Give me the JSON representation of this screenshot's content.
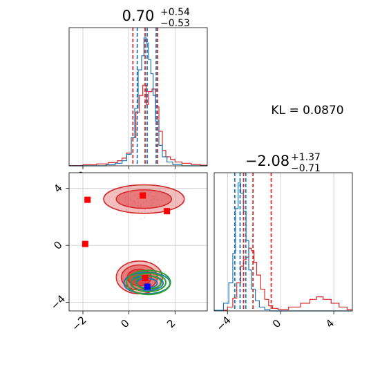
{
  "colors": {
    "red": "#d62728",
    "blue": "#1f77b4",
    "green": "#2ca02c",
    "red_marker": "#ff0000",
    "blue_marker": "#0000ff",
    "grid": "#c8c8c8"
  },
  "annotation": "KL = 0.0870",
  "chart_data": [
    {
      "type": "histogram",
      "panel": "top-left marginal (param 1)",
      "title": {
        "main": "0.70",
        "sup": "+0.54",
        "sub": "−0.53"
      },
      "xlim": [
        -2.6,
        3.4
      ],
      "x_ticks": [
        -2,
        0,
        2
      ],
      "grid": true,
      "series": [
        {
          "color": "red",
          "bins": [
            [
              -2.6,
              -2.0,
              0.2
            ],
            [
              -2.0,
              -1.4,
              0.8
            ],
            [
              -1.4,
              -0.9,
              1.5
            ],
            [
              -0.9,
              -0.5,
              2.5
            ],
            [
              -0.5,
              -0.3,
              4
            ],
            [
              -0.3,
              -0.1,
              6
            ],
            [
              -0.1,
              0.1,
              10
            ],
            [
              0.1,
              0.3,
              22
            ],
            [
              0.3,
              0.45,
              42
            ],
            [
              0.45,
              0.6,
              55
            ],
            [
              0.6,
              0.75,
              63
            ],
            [
              0.75,
              0.85,
              48
            ],
            [
              0.85,
              1.0,
              58
            ],
            [
              1.0,
              1.15,
              60
            ],
            [
              1.15,
              1.3,
              46
            ],
            [
              1.3,
              1.45,
              27
            ],
            [
              1.45,
              1.6,
              12
            ],
            [
              1.6,
              1.8,
              7
            ],
            [
              1.8,
              2.0,
              5
            ],
            [
              2.0,
              2.3,
              3
            ],
            [
              2.3,
              2.7,
              2
            ],
            [
              2.7,
              3.1,
              1
            ],
            [
              3.1,
              3.4,
              0.5
            ]
          ]
        },
        {
          "color": "blue",
          "bins": [
            [
              -2.6,
              -1.0,
              0
            ],
            [
              -1.0,
              -0.6,
              0.8
            ],
            [
              -0.6,
              -0.3,
              2
            ],
            [
              -0.3,
              -0.1,
              4
            ],
            [
              -0.1,
              0.1,
              9
            ],
            [
              0.1,
              0.25,
              22
            ],
            [
              0.25,
              0.4,
              45
            ],
            [
              0.4,
              0.55,
              75
            ],
            [
              0.55,
              0.65,
              86
            ],
            [
              0.65,
              0.75,
              100
            ],
            [
              0.75,
              0.85,
              96
            ],
            [
              0.85,
              0.95,
              83
            ],
            [
              0.95,
              1.05,
              72
            ],
            [
              1.05,
              1.15,
              55
            ],
            [
              1.15,
              1.3,
              35
            ],
            [
              1.3,
              1.45,
              16
            ],
            [
              1.45,
              1.65,
              7
            ],
            [
              1.65,
              1.9,
              3
            ],
            [
              1.9,
              2.3,
              1
            ],
            [
              2.3,
              3.4,
              0
            ]
          ]
        }
      ],
      "quantile_lines": [
        {
          "color": "red",
          "x": [
            0.17,
            0.7,
            1.24
          ]
        },
        {
          "color": "blue",
          "x": [
            0.36,
            0.79,
            1.18
          ]
        }
      ]
    },
    {
      "type": "scatter",
      "panel": "bottom-left 2D contours",
      "xlim": [
        -2.6,
        3.4
      ],
      "ylim": [
        -4.6,
        5.1
      ],
      "x_ticks": [
        -2,
        0,
        2
      ],
      "y_ticks": [
        4,
        0,
        -4
      ],
      "grid": true,
      "red_markers": [
        [
          -1.8,
          3.2
        ],
        [
          -1.9,
          0.1
        ],
        [
          0.6,
          3.5
        ],
        [
          1.65,
          2.4
        ],
        [
          0.7,
          -2.3
        ]
      ],
      "blue_markers": [
        [
          0.8,
          -2.9
        ]
      ],
      "contours": [
        {
          "color": "red",
          "kind": "filled",
          "cx": 0.45,
          "cy": -2.25,
          "levels": [
            [
              1.0,
              1.15
            ],
            [
              0.78,
              0.88
            ],
            [
              0.52,
              0.58
            ]
          ]
        },
        {
          "color": "red",
          "kind": "filled",
          "cx": 0.65,
          "cy": 3.25,
          "levels": [
            [
              1.75,
              1.0
            ],
            [
              1.2,
              0.65
            ]
          ]
        },
        {
          "color": "blue",
          "kind": "line",
          "cx": 0.78,
          "cy": -2.65,
          "levels": [
            [
              1.0,
              0.75
            ],
            [
              0.7,
              0.52
            ],
            [
              0.45,
              0.33
            ]
          ]
        },
        {
          "color": "green",
          "kind": "line",
          "cx": 0.85,
          "cy": -2.6,
          "levels": [
            [
              0.95,
              0.85
            ],
            [
              0.75,
              0.65
            ],
            [
              0.55,
              0.45
            ]
          ]
        }
      ]
    },
    {
      "type": "histogram",
      "panel": "bottom-right marginal (param 2)",
      "title": {
        "main": "−2.08",
        "sup": "+1.37",
        "sub": "−0.71"
      },
      "xlim": [
        -5.0,
        5.4
      ],
      "x_ticks": [
        -4,
        0,
        4
      ],
      "grid": true,
      "series": [
        {
          "color": "red",
          "bins": [
            [
              -5.0,
              -4.0,
              0.5
            ],
            [
              -4.0,
              -3.6,
              3
            ],
            [
              -3.6,
              -3.3,
              10
            ],
            [
              -3.3,
              -3.0,
              22
            ],
            [
              -3.0,
              -2.8,
              35
            ],
            [
              -2.8,
              -2.6,
              40
            ],
            [
              -2.6,
              -2.4,
              42
            ],
            [
              -2.4,
              -2.2,
              49
            ],
            [
              -2.2,
              -2.0,
              47
            ],
            [
              -2.0,
              -1.8,
              38
            ],
            [
              -1.8,
              -1.5,
              28
            ],
            [
              -1.5,
              -1.2,
              17
            ],
            [
              -1.2,
              -0.9,
              9
            ],
            [
              -0.9,
              -0.6,
              4
            ],
            [
              -0.6,
              -0.2,
              2
            ],
            [
              -0.2,
              0.6,
              1
            ],
            [
              0.6,
              1.5,
              3
            ],
            [
              1.5,
              2.2,
              6
            ],
            [
              2.2,
              2.7,
              9
            ],
            [
              2.7,
              3.2,
              11
            ],
            [
              3.2,
              3.8,
              9
            ],
            [
              3.8,
              4.4,
              6
            ],
            [
              4.4,
              5.0,
              3
            ],
            [
              5.0,
              5.4,
              1
            ]
          ]
        },
        {
          "color": "blue",
          "bins": [
            [
              -5.0,
              -4.3,
              0.5
            ],
            [
              -4.3,
              -3.9,
              6
            ],
            [
              -3.9,
              -3.6,
              22
            ],
            [
              -3.6,
              -3.4,
              45
            ],
            [
              -3.4,
              -3.2,
              80
            ],
            [
              -3.2,
              -3.0,
              100
            ],
            [
              -3.0,
              -2.8,
              92
            ],
            [
              -2.8,
              -2.6,
              78
            ],
            [
              -2.6,
              -2.4,
              55
            ],
            [
              -2.4,
              -2.2,
              32
            ],
            [
              -2.2,
              -1.9,
              17
            ],
            [
              -1.9,
              -1.6,
              8
            ],
            [
              -1.6,
              -1.2,
              3
            ],
            [
              -1.2,
              -0.8,
              1
            ],
            [
              -0.8,
              5.4,
              0
            ]
          ]
        }
      ],
      "quantile_lines": [
        {
          "color": "red",
          "x": [
            -2.79,
            -2.08,
            -0.71
          ]
        },
        {
          "color": "blue",
          "x": [
            -3.45,
            -3.05,
            -2.62
          ]
        }
      ]
    }
  ]
}
